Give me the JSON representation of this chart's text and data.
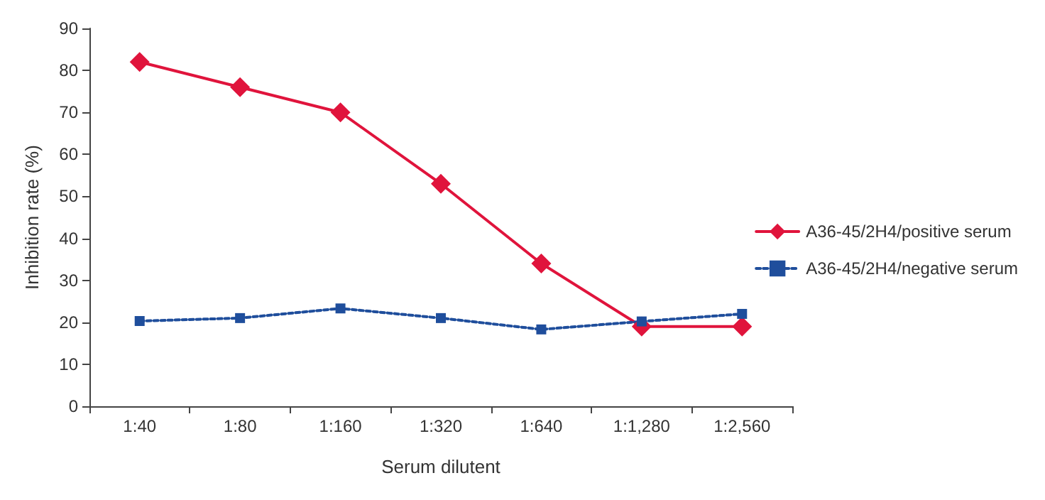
{
  "chart_data": {
    "type": "line",
    "xlabel": "Serum dilutent",
    "ylabel": "Inhibition rate (%)",
    "categories": [
      "1:40",
      "1:80",
      "1:160",
      "1:320",
      "1:640",
      "1:1,280",
      "1:2,560"
    ],
    "series": [
      {
        "name": "A36-45/2H4/positive serum",
        "color": "#e0143c",
        "marker": "diamond",
        "line_style": "solid",
        "values": [
          82,
          76,
          70,
          53,
          34,
          19,
          19
        ]
      },
      {
        "name": "A36-45/2H4/negative serum",
        "color": "#1f4e9c",
        "marker": "square",
        "line_style": "dotted",
        "values": [
          20.3,
          21,
          23.3,
          21,
          18.3,
          20.2,
          22
        ]
      }
    ],
    "ylim": [
      0,
      90
    ],
    "yticks": [
      0,
      10,
      20,
      30,
      40,
      50,
      60,
      70,
      80,
      90
    ],
    "grid": false,
    "legend": "right"
  }
}
